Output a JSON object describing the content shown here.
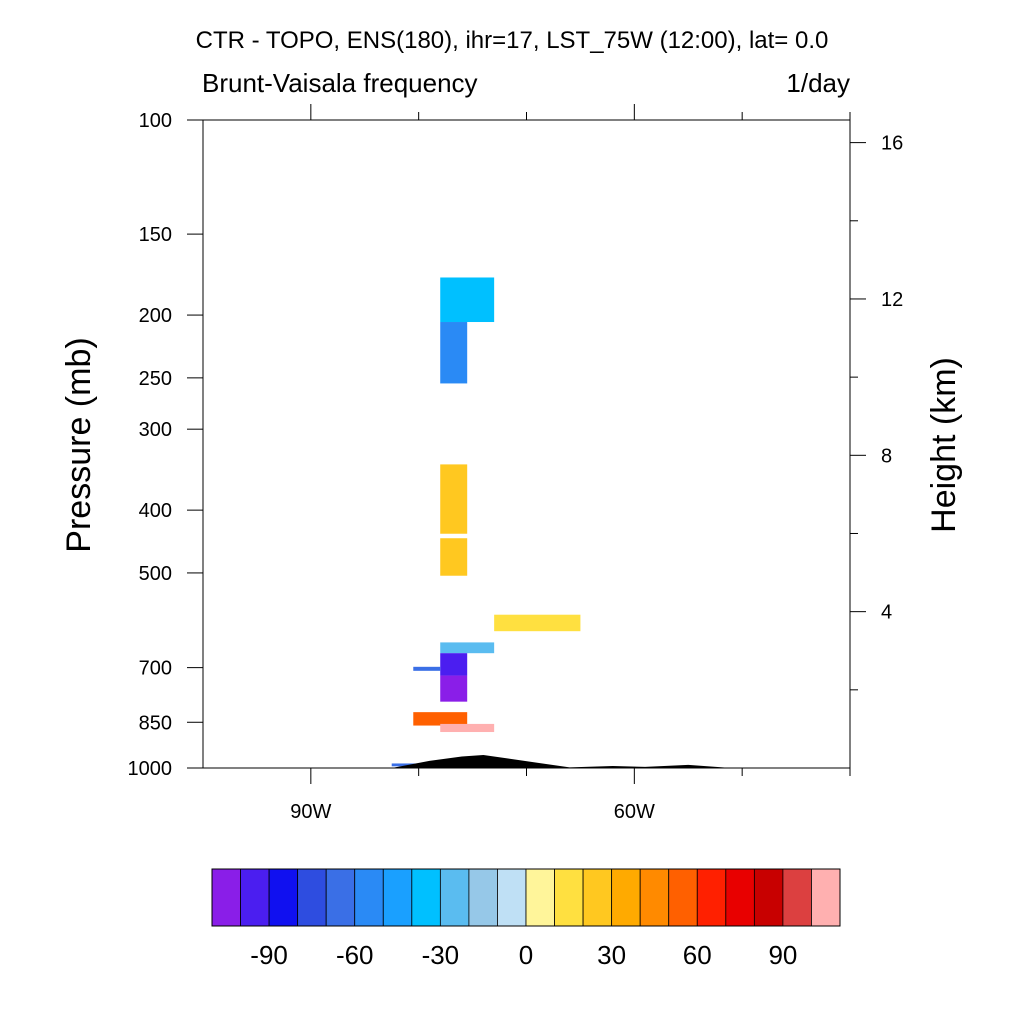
{
  "chart_data": {
    "type": "heatmap",
    "title": "CTR - TOPO, ENS(180), ihr=17, LST_75W (12:00), lat=  0.0",
    "subtitle_left": "Brunt-Vaisala frequency",
    "subtitle_right": "1/day",
    "ylabel": "Pressure (mb)",
    "ylabel_right": "Height (km)",
    "x_ticks": [
      {
        "value": -90,
        "label": "90W"
      },
      {
        "value": -60,
        "label": "60W"
      }
    ],
    "x_minor_ticks": [
      -80,
      -70,
      -50,
      -40
    ],
    "xlim": [
      -100,
      -40
    ],
    "y_ticks": [
      {
        "value": 100,
        "label": "100"
      },
      {
        "value": 150,
        "label": "150"
      },
      {
        "value": 200,
        "label": "200"
      },
      {
        "value": 250,
        "label": "250"
      },
      {
        "value": 300,
        "label": "300"
      },
      {
        "value": 400,
        "label": "400"
      },
      {
        "value": 500,
        "label": "500"
      },
      {
        "value": 700,
        "label": "700"
      },
      {
        "value": 850,
        "label": "850"
      },
      {
        "value": 1000,
        "label": "1000"
      }
    ],
    "ylim": [
      1000,
      100
    ],
    "y_scale": "log",
    "y_right_ticks": [
      {
        "value": 16,
        "label": "16"
      },
      {
        "value": 12,
        "label": "12"
      },
      {
        "value": 8,
        "label": "8"
      },
      {
        "value": 4,
        "label": "4"
      }
    ],
    "colorbar": {
      "colors": [
        "#8a1ee8",
        "#4b1ef0",
        "#1010f0",
        "#2e4de0",
        "#3a6fe6",
        "#2a8af5",
        "#1aa0ff",
        "#00c0ff",
        "#5abcf0",
        "#96c8e8",
        "#bfe0f5",
        "#fff59a",
        "#ffe040",
        "#ffc820",
        "#ffaa00",
        "#ff8a00",
        "#ff6000",
        "#ff2000",
        "#e80000",
        "#c80000",
        "#dc4040",
        "#ffb0b0"
      ],
      "tick_labels": [
        "-90",
        "-60",
        "-30",
        "0",
        "30",
        "60",
        "90"
      ]
    },
    "regions": [
      {
        "lon": [
          -78,
          -73
        ],
        "p": [
          175,
          205
        ],
        "value": -28,
        "color": "#00c0ff"
      },
      {
        "lon": [
          -78,
          -75.5
        ],
        "p": [
          205,
          255
        ],
        "value": -38,
        "color": "#2a8af5"
      },
      {
        "lon": [
          -78,
          -75.5
        ],
        "p": [
          340,
          435
        ],
        "value": 36,
        "color": "#ffc820"
      },
      {
        "lon": [
          -78,
          -75.5
        ],
        "p": [
          442,
          505
        ],
        "value": 36,
        "color": "#ffc820"
      },
      {
        "lon": [
          -73,
          -65
        ],
        "p": [
          580,
          615
        ],
        "value": 20,
        "color": "#ffe040"
      },
      {
        "lon": [
          -78,
          -73
        ],
        "p": [
          640,
          665
        ],
        "value": -20,
        "color": "#5abcf0"
      },
      {
        "lon": [
          -78,
          -75.5
        ],
        "p": [
          665,
          720
        ],
        "value": -75,
        "color": "#4b1ef0"
      },
      {
        "lon": [
          -78,
          -75.5
        ],
        "p": [
          720,
          790
        ],
        "value": -100,
        "color": "#8a1ee8"
      },
      {
        "lon": [
          -80.5,
          -78
        ],
        "p": [
          698,
          708
        ],
        "value": -85,
        "color": "#3a6fe6"
      },
      {
        "lon": [
          -80.5,
          -75.5
        ],
        "p": [
          820,
          860
        ],
        "value": 70,
        "color": "#ff6000"
      },
      {
        "lon": [
          -78,
          -73
        ],
        "p": [
          855,
          880
        ],
        "value": 100,
        "color": "#ffb0b0"
      },
      {
        "lon": [
          -82.5,
          -80
        ],
        "p": [
          984,
          994
        ],
        "value": -50,
        "color": "#3a6fe6"
      }
    ],
    "topography": [
      {
        "lon": -82.5,
        "p": 1000
      },
      {
        "lon": -79,
        "p": 975
      },
      {
        "lon": -76,
        "p": 960
      },
      {
        "lon": -74,
        "p": 955
      },
      {
        "lon": -66,
        "p": 998
      },
      {
        "lon": -62,
        "p": 993
      },
      {
        "lon": -59,
        "p": 996
      },
      {
        "lon": -55,
        "p": 989
      },
      {
        "lon": -51,
        "p": 1000
      }
    ]
  }
}
